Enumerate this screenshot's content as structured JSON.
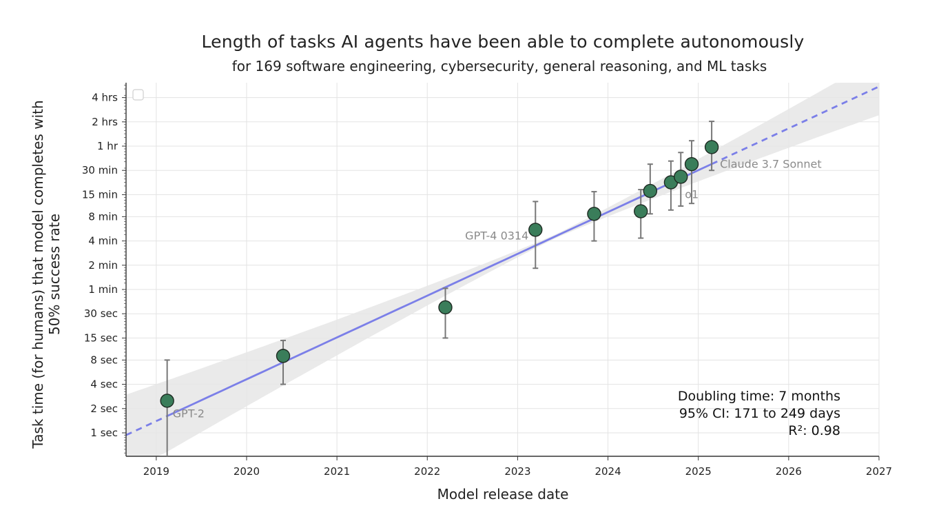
{
  "chart_data": {
    "type": "scatter",
    "title": "Length of tasks AI agents have been able to complete autonomously",
    "subtitle": "for 169 software engineering, cybersecurity, general reasoning, and ML tasks",
    "xlabel": "Model release date",
    "ylabel": "Task time (for humans) that model completes with 50% success rate",
    "y_scale": "log2",
    "y_unit": "seconds",
    "xlim": [
      "2018-09-01",
      "2027-01-01"
    ],
    "ylim_seconds": [
      0.5,
      18000
    ],
    "x_ticks": [
      "2019",
      "2020",
      "2021",
      "2022",
      "2023",
      "2024",
      "2025",
      "2026",
      "2027"
    ],
    "y_ticks": [
      {
        "label": "1 sec",
        "seconds": 1
      },
      {
        "label": "2 sec",
        "seconds": 2
      },
      {
        "label": "4 sec",
        "seconds": 4
      },
      {
        "label": "8 sec",
        "seconds": 8
      },
      {
        "label": "15 sec",
        "seconds": 15
      },
      {
        "label": "30 sec",
        "seconds": 30
      },
      {
        "label": "1 min",
        "seconds": 60
      },
      {
        "label": "2 min",
        "seconds": 120
      },
      {
        "label": "4 min",
        "seconds": 240
      },
      {
        "label": "8 min",
        "seconds": 480
      },
      {
        "label": "15 min",
        "seconds": 900
      },
      {
        "label": "30 min",
        "seconds": 1800
      },
      {
        "label": "1 hr",
        "seconds": 3600
      },
      {
        "label": "2 hrs",
        "seconds": 7200
      },
      {
        "label": "4 hrs",
        "seconds": 14400
      }
    ],
    "grid": true,
    "points": [
      {
        "label": "GPT-2",
        "date": "2019-02-14",
        "seconds": 2.5,
        "ci_low": 0.4,
        "ci_high": 8
      },
      {
        "label": "",
        "date": "2020-05-28",
        "seconds": 9,
        "ci_low": 4,
        "ci_high": 14
      },
      {
        "label": "",
        "date": "2022-03-15",
        "seconds": 36,
        "ci_low": 15,
        "ci_high": 62
      },
      {
        "label": "GPT-4 0314",
        "date": "2023-03-14",
        "seconds": 330,
        "ci_low": 110,
        "ci_high": 740
      },
      {
        "label": "",
        "date": "2023-11-06",
        "seconds": 520,
        "ci_low": 240,
        "ci_high": 980
      },
      {
        "label": "",
        "date": "2024-05-13",
        "seconds": 560,
        "ci_low": 260,
        "ci_high": 1040
      },
      {
        "label": "",
        "date": "2024-06-20",
        "seconds": 1000,
        "ci_low": 520,
        "ci_high": 2150
      },
      {
        "label": "",
        "date": "2024-09-12",
        "seconds": 1280,
        "ci_low": 580,
        "ci_high": 2350
      },
      {
        "label": "o1",
        "date": "2024-10-22",
        "seconds": 1500,
        "ci_low": 650,
        "ci_high": 3000
      },
      {
        "label": "",
        "date": "2024-12-05",
        "seconds": 2150,
        "ci_low": 700,
        "ci_high": 4200
      },
      {
        "label": "Claude 3.7 Sonnet",
        "date": "2025-02-24",
        "seconds": 3500,
        "ci_low": 1800,
        "ci_high": 7300
      }
    ],
    "trend": {
      "doubling_days": 212,
      "anchor_date": "2024-06-01",
      "anchor_seconds": 900,
      "solid_range": [
        "2019-02-14",
        "2025-02-24"
      ],
      "dashed_range": [
        "2018-09-01",
        "2027-01-01"
      ],
      "band_multiplier_at_edges": 3.0
    },
    "annotation": {
      "lines": [
        "Doubling time: 7 months",
        "95% CI: 171 to 249 days",
        "R²: 0.98"
      ]
    },
    "colors": {
      "point_fill": "#3a7d5a",
      "point_stroke": "#1e2a22",
      "errorbar": "#777777",
      "trend_line": "#7b7fe8",
      "band": "#e6e6e6",
      "grid": "#e3e3e3",
      "label": "#8a8a8a"
    }
  }
}
